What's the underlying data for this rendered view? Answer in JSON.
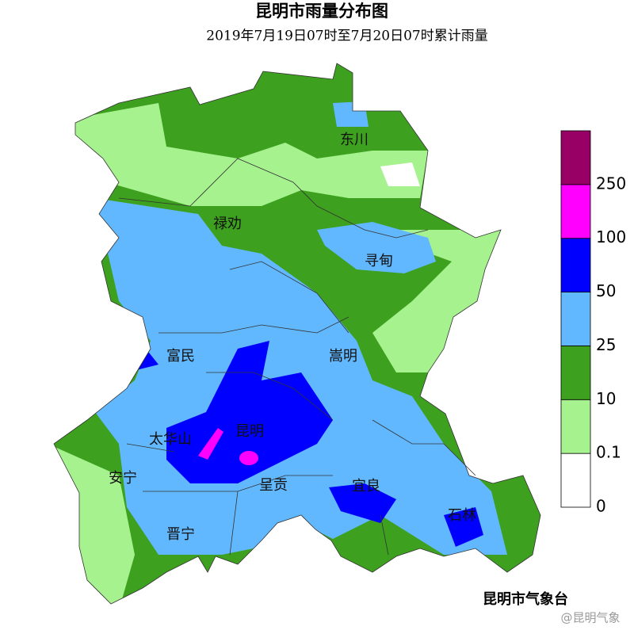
{
  "title": "昆明市雨量分布图",
  "subtitle": "2019年7月19日07时至7月20日07时累计雨量",
  "places": [
    "东川",
    "禄劝",
    "寻甸",
    "富民",
    "嵩明",
    "太华山",
    "昆明",
    "安宁",
    "呈贡",
    "宜良",
    "石林",
    "晋宁"
  ],
  "legend": {
    "labels": [
      0,
      0.1,
      10,
      25,
      50,
      100,
      250
    ],
    "colors": [
      "#ffffff",
      "#a6f28f",
      "#3da11f",
      "#62b8ff",
      "#0000fe",
      "#ff00fe",
      "#990066"
    ]
  },
  "source": "昆明市气象台",
  "watermark": "@昆明气象"
}
